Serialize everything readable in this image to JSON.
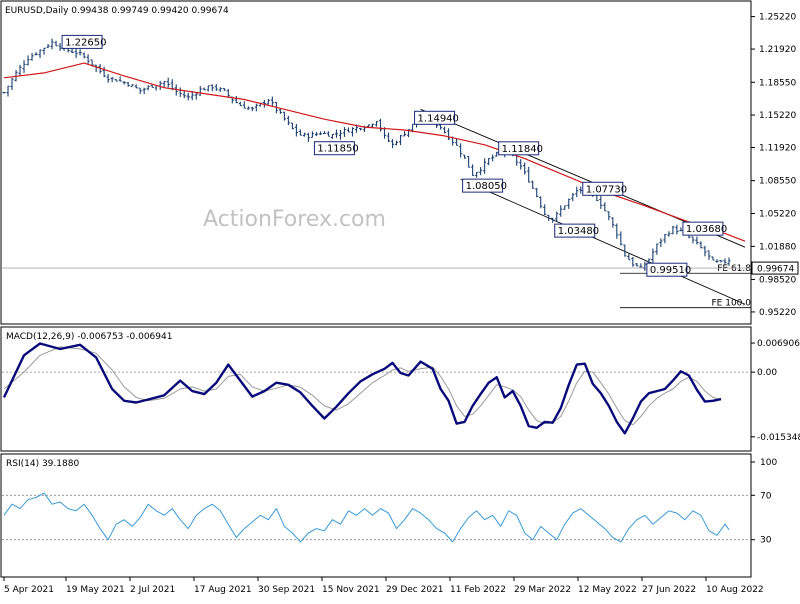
{
  "chart_data": [
    {
      "type": "candlestick",
      "panel": "price",
      "header": "EURUSD,Daily  0.99438 0.99749 0.99420 0.99674",
      "watermark": "ActionForex.com",
      "last_price_label": "0.99674",
      "y_ticks": [
        "1.25220",
        "1.21920",
        "1.18550",
        "1.15220",
        "1.11920",
        "1.08550",
        "1.05220",
        "1.01880",
        "0.98520",
        "0.95220"
      ],
      "ylim": [
        0.944,
        1.265
      ],
      "x_ticks": [
        "5 Apr 2021",
        "19 May 2021",
        "2 Jul 2021",
        "17 Aug 2021",
        "30 Sep 2021",
        "15 Nov 2021",
        "29 Dec 2021",
        "11 Feb 2022",
        "29 Mar 2022",
        "12 May 2022",
        "27 Jun 2022",
        "10 Aug 2022"
      ],
      "price_path": [
        [
          0,
          1.175
        ],
        [
          3,
          1.195
        ],
        [
          6,
          1.21
        ],
        [
          9,
          1.218
        ],
        [
          12,
          1.226
        ],
        [
          14,
          1.222
        ],
        [
          16,
          1.218
        ],
        [
          19,
          1.214
        ],
        [
          21,
          1.208
        ],
        [
          23,
          1.2
        ],
        [
          26,
          1.19
        ],
        [
          28,
          1.188
        ],
        [
          31,
          1.184
        ],
        [
          34,
          1.177
        ],
        [
          37,
          1.182
        ],
        [
          40,
          1.186
        ],
        [
          43,
          1.176
        ],
        [
          46,
          1.17
        ],
        [
          49,
          1.178
        ],
        [
          52,
          1.181
        ],
        [
          55,
          1.176
        ],
        [
          57,
          1.168
        ],
        [
          59,
          1.162
        ],
        [
          62,
          1.158
        ],
        [
          64,
          1.163
        ],
        [
          66,
          1.168
        ],
        [
          68,
          1.158
        ],
        [
          70,
          1.148
        ],
        [
          72,
          1.138
        ],
        [
          74,
          1.132
        ],
        [
          76,
          1.131
        ],
        [
          79,
          1.134
        ],
        [
          82,
          1.132
        ],
        [
          85,
          1.136
        ],
        [
          88,
          1.139
        ],
        [
          91,
          1.142
        ],
        [
          93,
          1.147
        ],
        [
          95,
          1.13
        ],
        [
          97,
          1.122
        ],
        [
          99,
          1.13
        ],
        [
          101,
          1.138
        ],
        [
          103,
          1.146
        ],
        [
          105,
          1.15
        ],
        [
          107,
          1.146
        ],
        [
          109,
          1.14
        ],
        [
          111,
          1.13
        ],
        [
          113,
          1.121
        ],
        [
          115,
          1.108
        ],
        [
          117,
          1.092
        ],
        [
          119,
          1.098
        ],
        [
          121,
          1.107
        ],
        [
          123,
          1.112
        ],
        [
          125,
          1.115
        ],
        [
          127,
          1.11
        ],
        [
          129,
          1.1
        ],
        [
          131,
          1.086
        ],
        [
          133,
          1.07
        ],
        [
          135,
          1.052
        ],
        [
          137,
          1.046
        ],
        [
          139,
          1.056
        ],
        [
          141,
          1.066
        ],
        [
          143,
          1.075
        ],
        [
          145,
          1.077
        ],
        [
          147,
          1.072
        ],
        [
          149,
          1.062
        ],
        [
          151,
          1.048
        ],
        [
          153,
          1.032
        ],
        [
          155,
          1.01
        ],
        [
          157,
          1.001
        ],
        [
          159,
          0.996
        ],
        [
          161,
          1.006
        ],
        [
          163,
          1.02
        ],
        [
          165,
          1.03
        ],
        [
          167,
          1.037
        ],
        [
          169,
          1.034
        ],
        [
          171,
          1.028
        ],
        [
          173,
          1.021
        ],
        [
          175,
          1.013
        ],
        [
          177,
          1.003
        ],
        [
          179,
          1.002
        ],
        [
          181,
          1.005
        ],
        [
          183,
          0.998
        ],
        [
          185,
          0.996
        ]
      ],
      "ma_path": [
        [
          0,
          1.19
        ],
        [
          10,
          1.195
        ],
        [
          20,
          1.205
        ],
        [
          30,
          1.192
        ],
        [
          40,
          1.18
        ],
        [
          50,
          1.174
        ],
        [
          60,
          1.168
        ],
        [
          70,
          1.158
        ],
        [
          80,
          1.148
        ],
        [
          90,
          1.14
        ],
        [
          100,
          1.137
        ],
        [
          110,
          1.131
        ],
        [
          120,
          1.122
        ],
        [
          130,
          1.108
        ],
        [
          140,
          1.091
        ],
        [
          150,
          1.074
        ],
        [
          160,
          1.06
        ],
        [
          170,
          1.045
        ],
        [
          180,
          1.032
        ],
        [
          185,
          1.024
        ]
      ],
      "annotations": [
        {
          "text": "1.22650",
          "x": 15,
          "y": 1.2265
        },
        {
          "text": "1.14940",
          "x": 103,
          "y": 1.1494
        },
        {
          "text": "1.11850",
          "x": 78,
          "y": 1.1185
        },
        {
          "text": "1.11840",
          "x": 124,
          "y": 1.1184
        },
        {
          "text": "1.08050",
          "x": 115,
          "y": 1.0805
        },
        {
          "text": "1.07730",
          "x": 145,
          "y": 1.0773
        },
        {
          "text": "1.03480",
          "x": 138,
          "y": 1.0348
        },
        {
          "text": "1.03680",
          "x": 170,
          "y": 1.0368
        },
        {
          "text": "0.99510",
          "x": 161,
          "y": 0.9951
        }
      ],
      "fib_levels": [
        {
          "text": "FE 61.8",
          "value": 0.9915
        },
        {
          "text": "FE 100.0",
          "value": 0.9565
        }
      ]
    },
    {
      "type": "line",
      "panel": "macd",
      "header": "MACD(12,26,9) -0.006753 -0.006941",
      "y_ticks": [
        "0.006906",
        "0.00",
        "-0.015348"
      ],
      "ylim": [
        -0.018,
        0.01
      ],
      "macd": [
        [
          0,
          -0.006
        ],
        [
          5,
          0.004
        ],
        [
          9,
          0.0068
        ],
        [
          14,
          0.0055
        ],
        [
          19,
          0.0065
        ],
        [
          23,
          0.0035
        ],
        [
          27,
          -0.004
        ],
        [
          30,
          -0.0068
        ],
        [
          33,
          -0.0072
        ],
        [
          36,
          -0.0065
        ],
        [
          40,
          -0.0055
        ],
        [
          44,
          -0.002
        ],
        [
          47,
          -0.0045
        ],
        [
          50,
          -0.0052
        ],
        [
          53,
          -0.0025
        ],
        [
          56,
          0.0018
        ],
        [
          59,
          -0.002
        ],
        [
          62,
          -0.0058
        ],
        [
          65,
          -0.0045
        ],
        [
          68,
          -0.0025
        ],
        [
          71,
          -0.003
        ],
        [
          74,
          -0.0048
        ],
        [
          77,
          -0.008
        ],
        [
          80,
          -0.011
        ],
        [
          83,
          -0.0082
        ],
        [
          86,
          -0.005
        ],
        [
          89,
          -0.0022
        ],
        [
          92,
          -0.0005
        ],
        [
          95,
          0.0008
        ],
        [
          97,
          0.0022
        ],
        [
          99,
          -0.0002
        ],
        [
          101,
          -0.0008
        ],
        [
          104,
          0.0025
        ],
        [
          107,
          0.0008
        ],
        [
          109,
          -0.004
        ],
        [
          111,
          -0.0068
        ],
        [
          113,
          -0.0122
        ],
        [
          115,
          -0.0118
        ],
        [
          117,
          -0.008
        ],
        [
          119,
          -0.0052
        ],
        [
          121,
          -0.0025
        ],
        [
          123,
          -0.0012
        ],
        [
          125,
          -0.006
        ],
        [
          127,
          -0.0045
        ],
        [
          129,
          -0.008
        ],
        [
          131,
          -0.0128
        ],
        [
          133,
          -0.0132
        ],
        [
          135,
          -0.0118
        ],
        [
          137,
          -0.012
        ],
        [
          139,
          -0.0085
        ],
        [
          141,
          -0.003
        ],
        [
          143,
          0.0018
        ],
        [
          145,
          0.002
        ],
        [
          147,
          -0.0028
        ],
        [
          149,
          -0.005
        ],
        [
          151,
          -0.008
        ],
        [
          153,
          -0.0118
        ],
        [
          155,
          -0.0145
        ],
        [
          157,
          -0.011
        ],
        [
          159,
          -0.007
        ],
        [
          161,
          -0.005
        ],
        [
          163,
          -0.0045
        ],
        [
          165,
          -0.004
        ],
        [
          167,
          -0.002
        ],
        [
          169,
          0.0002
        ],
        [
          171,
          -0.0008
        ],
        [
          173,
          -0.0042
        ],
        [
          175,
          -0.007
        ],
        [
          177,
          -0.0068
        ],
        [
          179,
          -0.0064
        ]
      ],
      "signal": [
        [
          0,
          -0.004
        ],
        [
          5,
          0.0
        ],
        [
          9,
          0.004
        ],
        [
          14,
          0.006
        ],
        [
          19,
          0.0055
        ],
        [
          23,
          0.0045
        ],
        [
          27,
          0.0005
        ],
        [
          30,
          -0.0035
        ],
        [
          33,
          -0.006
        ],
        [
          36,
          -0.0068
        ],
        [
          40,
          -0.0062
        ],
        [
          44,
          -0.004
        ],
        [
          47,
          -0.0035
        ],
        [
          50,
          -0.0045
        ],
        [
          53,
          -0.004
        ],
        [
          56,
          -0.001
        ],
        [
          59,
          -0.0005
        ],
        [
          62,
          -0.0035
        ],
        [
          65,
          -0.0045
        ],
        [
          68,
          -0.0038
        ],
        [
          71,
          -0.003
        ],
        [
          74,
          -0.0036
        ],
        [
          77,
          -0.0055
        ],
        [
          80,
          -0.008
        ],
        [
          83,
          -0.009
        ],
        [
          86,
          -0.0075
        ],
        [
          89,
          -0.005
        ],
        [
          92,
          -0.0025
        ],
        [
          95,
          -0.0008
        ],
        [
          97,
          0.0005
        ],
        [
          99,
          0.001
        ],
        [
          101,
          0.0002
        ],
        [
          104,
          0.0008
        ],
        [
          107,
          0.0012
        ],
        [
          109,
          -0.001
        ],
        [
          111,
          -0.004
        ],
        [
          113,
          -0.008
        ],
        [
          115,
          -0.0105
        ],
        [
          117,
          -0.01
        ],
        [
          119,
          -0.008
        ],
        [
          121,
          -0.0055
        ],
        [
          123,
          -0.003
        ],
        [
          125,
          -0.0035
        ],
        [
          127,
          -0.0042
        ],
        [
          129,
          -0.0058
        ],
        [
          131,
          -0.009
        ],
        [
          133,
          -0.0115
        ],
        [
          135,
          -0.0122
        ],
        [
          137,
          -0.012
        ],
        [
          139,
          -0.0105
        ],
        [
          141,
          -0.0068
        ],
        [
          143,
          -0.0025
        ],
        [
          145,
          0.0002
        ],
        [
          147,
          0.0
        ],
        [
          149,
          -0.0025
        ],
        [
          151,
          -0.0052
        ],
        [
          153,
          -0.0085
        ],
        [
          155,
          -0.0115
        ],
        [
          157,
          -0.0125
        ],
        [
          159,
          -0.0105
        ],
        [
          161,
          -0.008
        ],
        [
          163,
          -0.0062
        ],
        [
          165,
          -0.005
        ],
        [
          167,
          -0.004
        ],
        [
          169,
          -0.0022
        ],
        [
          171,
          -0.0012
        ],
        [
          173,
          -0.0022
        ],
        [
          175,
          -0.0045
        ],
        [
          177,
          -0.006
        ],
        [
          179,
          -0.0066
        ]
      ]
    },
    {
      "type": "line",
      "panel": "rsi",
      "header": "RSI(14) 39.1880",
      "y_ticks": [
        "100",
        "70",
        "30"
      ],
      "ylim": [
        0,
        100
      ],
      "levels": [
        70,
        30
      ],
      "rsi": [
        [
          0,
          52
        ],
        [
          2,
          62
        ],
        [
          4,
          58
        ],
        [
          6,
          66
        ],
        [
          8,
          68
        ],
        [
          10,
          72
        ],
        [
          12,
          62
        ],
        [
          14,
          64
        ],
        [
          16,
          58
        ],
        [
          18,
          56
        ],
        [
          20,
          62
        ],
        [
          22,
          52
        ],
        [
          24,
          40
        ],
        [
          26,
          30
        ],
        [
          28,
          44
        ],
        [
          30,
          48
        ],
        [
          32,
          42
        ],
        [
          34,
          50
        ],
        [
          36,
          62
        ],
        [
          38,
          56
        ],
        [
          40,
          52
        ],
        [
          42,
          58
        ],
        [
          44,
          48
        ],
        [
          46,
          40
        ],
        [
          48,
          52
        ],
        [
          50,
          58
        ],
        [
          52,
          62
        ],
        [
          54,
          56
        ],
        [
          56,
          44
        ],
        [
          58,
          32
        ],
        [
          60,
          40
        ],
        [
          62,
          46
        ],
        [
          64,
          52
        ],
        [
          66,
          48
        ],
        [
          68,
          58
        ],
        [
          70,
          42
        ],
        [
          72,
          36
        ],
        [
          74,
          28
        ],
        [
          76,
          36
        ],
        [
          78,
          40
        ],
        [
          80,
          38
        ],
        [
          82,
          48
        ],
        [
          84,
          44
        ],
        [
          86,
          56
        ],
        [
          88,
          52
        ],
        [
          90,
          58
        ],
        [
          92,
          52
        ],
        [
          94,
          58
        ],
        [
          96,
          54
        ],
        [
          98,
          40
        ],
        [
          100,
          48
        ],
        [
          102,
          58
        ],
        [
          104,
          54
        ],
        [
          106,
          48
        ],
        [
          108,
          40
        ],
        [
          110,
          36
        ],
        [
          112,
          28
        ],
        [
          114,
          40
        ],
        [
          116,
          50
        ],
        [
          118,
          56
        ],
        [
          120,
          48
        ],
        [
          122,
          52
        ],
        [
          124,
          42
        ],
        [
          126,
          56
        ],
        [
          128,
          52
        ],
        [
          130,
          36
        ],
        [
          132,
          30
        ],
        [
          134,
          42
        ],
        [
          136,
          36
        ],
        [
          138,
          30
        ],
        [
          140,
          44
        ],
        [
          142,
          54
        ],
        [
          144,
          58
        ],
        [
          146,
          52
        ],
        [
          148,
          46
        ],
        [
          150,
          40
        ],
        [
          152,
          32
        ],
        [
          154,
          28
        ],
        [
          156,
          40
        ],
        [
          158,
          48
        ],
        [
          160,
          52
        ],
        [
          162,
          44
        ],
        [
          164,
          50
        ],
        [
          166,
          56
        ],
        [
          168,
          54
        ],
        [
          170,
          48
        ],
        [
          172,
          56
        ],
        [
          174,
          52
        ],
        [
          176,
          38
        ],
        [
          178,
          34
        ],
        [
          180,
          44
        ],
        [
          181,
          39
        ]
      ]
    }
  ]
}
